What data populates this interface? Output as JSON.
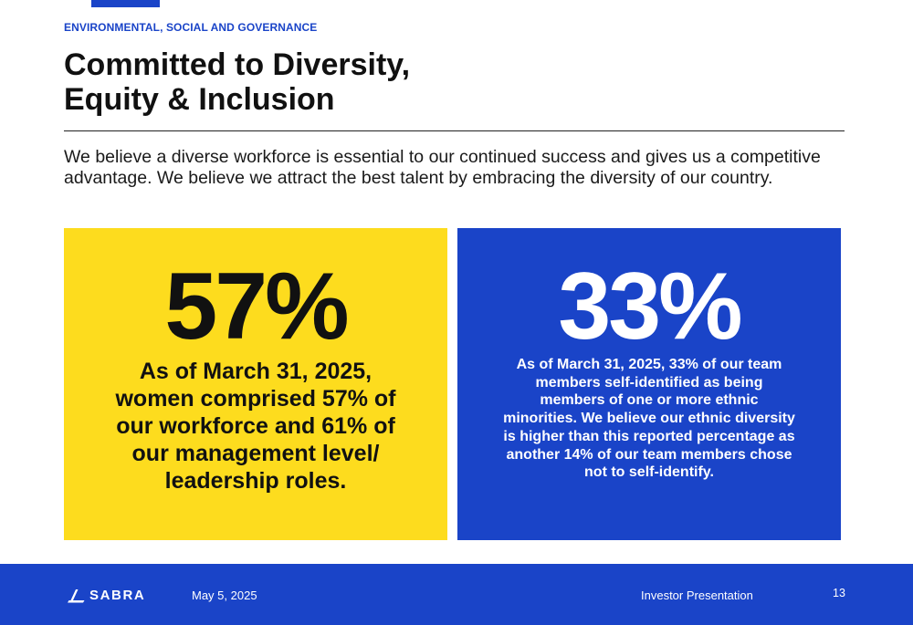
{
  "header": {
    "eyebrow": "ENVIRONMENTAL, SOCIAL AND GOVERNANCE",
    "title_line1": "Committed to Diversity,",
    "title_line2": "Equity & Inclusion"
  },
  "intro": "We believe a diverse workforce is essential to our continued success and gives us a competitive advantage. We believe we attract the best talent by embracing the diversity of our country.",
  "cards": [
    {
      "stat": "57%",
      "description": "As of March 31, 2025, women comprised 57% of our workforce and 61% of our management level/ leadership roles."
    },
    {
      "stat": "33%",
      "description": "As of March 31, 2025, 33% of our team members self-identified as being members of one or more ethnic minorities. We believe our ethnic diversity is higher than this reported percentage as another 14% of our team members chose not to self-identify."
    }
  ],
  "footer": {
    "logo_text": "SABRA",
    "date": "May 5, 2025",
    "presentation": "Investor Presentation",
    "page_number": "13"
  },
  "colors": {
    "accent_blue": "#1a44c8",
    "yellow": "#fddc1e",
    "text_dark": "#111111",
    "white": "#ffffff"
  },
  "icons": {
    "logo_mark": "sabra-logo-icon"
  }
}
